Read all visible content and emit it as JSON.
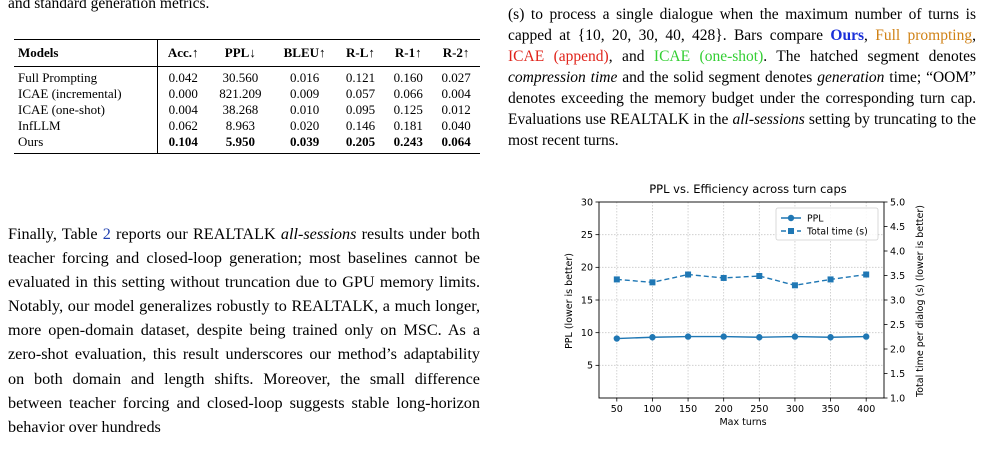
{
  "left": {
    "top_text": "and standard generation metrics.",
    "table": {
      "headers": [
        "Models",
        "Acc.↑",
        "PPL↓",
        "BLEU↑",
        "R-L↑",
        "R-1↑",
        "R-2↑"
      ],
      "rows": [
        {
          "model": "Full Prompting",
          "values": [
            "0.042",
            "30.560",
            "0.016",
            "0.121",
            "0.160",
            "0.027"
          ]
        },
        {
          "model": "ICAE (incremental)",
          "values": [
            "0.000",
            "821.209",
            "0.009",
            "0.057",
            "0.066",
            "0.004"
          ]
        },
        {
          "model": "ICAE (one-shot)",
          "values": [
            "0.004",
            "38.268",
            "0.010",
            "0.095",
            "0.125",
            "0.012"
          ]
        },
        {
          "model": "InfLLM",
          "values": [
            "0.062",
            "8.963",
            "0.020",
            "0.146",
            "0.181",
            "0.040"
          ]
        },
        {
          "model": "Ours",
          "values": [
            "0.104",
            "5.950",
            "0.039",
            "0.205",
            "0.243",
            "0.064"
          ]
        }
      ]
    },
    "paragraph": {
      "p1": "Finally, Table ",
      "ref": "2",
      "p2": " reports our REALTALK ",
      "em1": "all-sessions",
      "p3": " results under both teacher forcing and closed-loop generation; most baselines cannot be evaluated in this setting without truncation due to GPU memory limits. Notably, our model generalizes robustly to REALTALK, a much longer, more open-domain dataset, despite being trained only on MSC. As a zero-shot evaluation, this result underscores our method’s adaptability on both domain and length shifts. Moreover, the small difference between teacher forcing and closed-loop suggests stable long-horizon behavior over hundreds"
    }
  },
  "right": {
    "caption": {
      "t1": "(s) to process a single dialogue when the maximum number of turns is capped at {10, 20, 30, 40, 428}. Bars compare ",
      "ours": "Ours",
      "sep1": ", ",
      "full": "Full prompting",
      "sep2": ", ",
      "append": "ICAE (append)",
      "sep3": ", and ",
      "oneshot": "ICAE (one-shot)",
      "t2": ". The hatched segment denotes ",
      "em1": "compression time",
      "t3": " and the solid segment denotes ",
      "em2": "generation",
      "t4": " time; “OOM” denotes exceeding the memory budget under the corresponding turn cap. Evaluations use REALTALK in the ",
      "em3": "all-sessions",
      "t5": " setting by truncating to the most recent turns."
    }
  },
  "chart_data": {
    "type": "line",
    "title": "PPL vs. Efficiency across turn caps",
    "xlabel": "Max turns",
    "ylabel": "PPL (lower is better)",
    "ylabel_right": "Total time per dialog (s) (lower is better)",
    "x": [
      50,
      100,
      150,
      200,
      250,
      300,
      350,
      400
    ],
    "xticks": [
      50,
      100,
      150,
      200,
      250,
      300,
      350,
      400
    ],
    "ylim": [
      0,
      30
    ],
    "yticks": [
      5,
      10,
      15,
      20,
      25,
      30
    ],
    "ylim_right": [
      1.0,
      5.0
    ],
    "yticks_right": [
      "1.0",
      "1.5",
      "2.0",
      "2.5",
      "3.0",
      "3.5",
      "4.0",
      "4.5",
      "5.0"
    ],
    "grid": true,
    "legend_placement": "top-right",
    "series": [
      {
        "name": "PPL",
        "axis": "left",
        "style": "solid",
        "marker": "circle",
        "color": "#1f77b4",
        "values": [
          9.1,
          9.3,
          9.4,
          9.4,
          9.3,
          9.4,
          9.3,
          9.4
        ]
      },
      {
        "name": "Total time (s)",
        "axis": "right",
        "style": "dashed",
        "marker": "square",
        "color": "#1f77b4",
        "values": [
          3.42,
          3.36,
          3.52,
          3.45,
          3.49,
          3.3,
          3.42,
          3.52
        ]
      }
    ]
  }
}
